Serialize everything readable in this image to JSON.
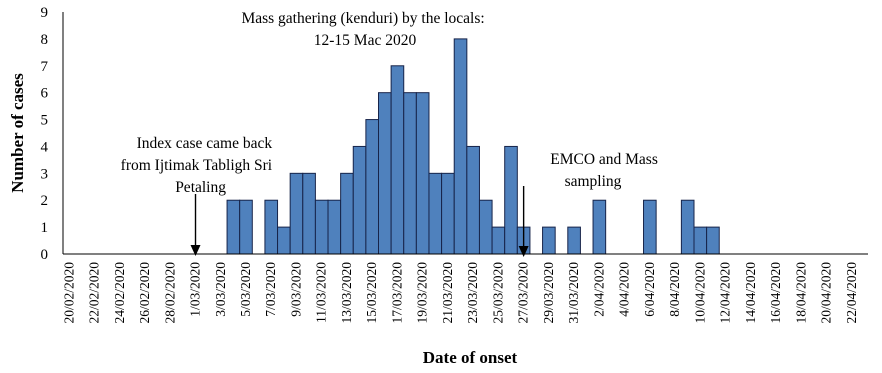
{
  "chart_data": {
    "type": "bar",
    "xlabel": "Date of onset",
    "ylabel": "Number of cases",
    "ylim": [
      0,
      9
    ],
    "yticks": [
      0,
      1,
      2,
      3,
      4,
      5,
      6,
      7,
      8,
      9
    ],
    "grid": false,
    "bar_color": "#4f81bd",
    "bar_edge_color": "#17244a",
    "x_tick_labels": [
      "20/02/2020",
      "22/02/2020",
      "24/02/2020",
      "26/02/2020",
      "28/02/2020",
      "1/03/2020",
      "3/03/2020",
      "5/03/2020",
      "7/03/2020",
      "9/03/2020",
      "11/03/2020",
      "13/03/2020",
      "15/03/2020",
      "17/03/2020",
      "19/03/2020",
      "21/03/2020",
      "23/03/2020",
      "25/03/2020",
      "27/03/2020",
      "29/03/2020",
      "31/03/2020",
      "2/04/2020",
      "4/04/2020",
      "6/04/2020",
      "8/04/2020",
      "10/04/2020",
      "12/04/2020",
      "14/04/2020",
      "16/04/2020",
      "18/04/2020",
      "20/04/2020",
      "22/04/2020"
    ],
    "x_start": "2020-02-20",
    "points": [
      {
        "x": "2020-03-04",
        "y": 2
      },
      {
        "x": "2020-03-05",
        "y": 2
      },
      {
        "x": "2020-03-07",
        "y": 2
      },
      {
        "x": "2020-03-08",
        "y": 1
      },
      {
        "x": "2020-03-09",
        "y": 3
      },
      {
        "x": "2020-03-10",
        "y": 3
      },
      {
        "x": "2020-03-11",
        "y": 2
      },
      {
        "x": "2020-03-12",
        "y": 2
      },
      {
        "x": "2020-03-13",
        "y": 3
      },
      {
        "x": "2020-03-14",
        "y": 4
      },
      {
        "x": "2020-03-15",
        "y": 5
      },
      {
        "x": "2020-03-16",
        "y": 6
      },
      {
        "x": "2020-03-17",
        "y": 7
      },
      {
        "x": "2020-03-18",
        "y": 6
      },
      {
        "x": "2020-03-19",
        "y": 6
      },
      {
        "x": "2020-03-20",
        "y": 3
      },
      {
        "x": "2020-03-21",
        "y": 3
      },
      {
        "x": "2020-03-22",
        "y": 8
      },
      {
        "x": "2020-03-23",
        "y": 4
      },
      {
        "x": "2020-03-24",
        "y": 2
      },
      {
        "x": "2020-03-25",
        "y": 1
      },
      {
        "x": "2020-03-26",
        "y": 4
      },
      {
        "x": "2020-03-27",
        "y": 1
      },
      {
        "x": "2020-03-29",
        "y": 1
      },
      {
        "x": "2020-03-31",
        "y": 1
      },
      {
        "x": "2020-04-02",
        "y": 2
      },
      {
        "x": "2020-04-06",
        "y": 2
      },
      {
        "x": "2020-04-09",
        "y": 2
      },
      {
        "x": "2020-04-10",
        "y": 1
      },
      {
        "x": "2020-04-11",
        "y": 1
      }
    ],
    "annotations": [
      {
        "text_lines": [
          "Mass gathering (kenduri) by the locals:",
          "12-15 Mac 2020"
        ]
      },
      {
        "text_lines": [
          "Index case came back",
          "from Ijtimak Tabligh Sri",
          "Petaling"
        ],
        "arrow_at": "2020-03-01"
      },
      {
        "text_lines": [
          "EMCO and Mass",
          "sampling"
        ],
        "arrow_at": "2020-03-27"
      }
    ]
  }
}
